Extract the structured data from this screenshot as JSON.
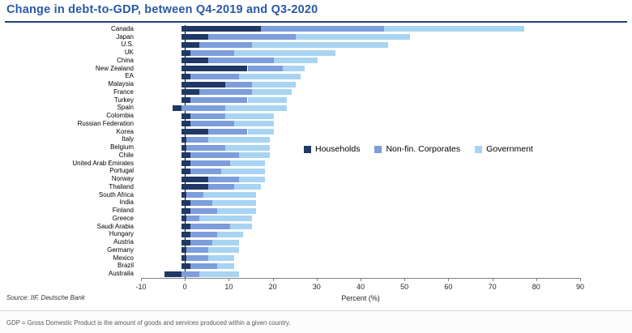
{
  "title": "Change in debt-to-GDP, between Q4-2019 and Q3-2020",
  "source": "Source: IIF, Deutsche Bank",
  "footnote": "GDP = Gross Domestic Product is the amount of goods and services produced within a given country.",
  "colors": {
    "title_blue": "#2A58A6",
    "households": "#203864",
    "non_fin_corporates": "#7D9DDB",
    "government": "#A8D4F2",
    "axis": "#808080"
  },
  "chart_data": {
    "type": "bar",
    "orientation": "horizontal",
    "stacked": true,
    "title": "Change in debt-to-GDP, between Q4-2019 and Q3-2020",
    "xlabel": "Percent (%)",
    "ylabel": "",
    "xlim": [
      -10,
      90
    ],
    "xticks": [
      -10,
      0,
      10,
      20,
      30,
      40,
      50,
      60,
      70,
      80,
      90
    ],
    "grid": false,
    "legend_position": "inside-middle-right",
    "categories": [
      "Canada",
      "Japan",
      "U.S.",
      "UK",
      "China",
      "New Zealand",
      "EA",
      "Malaysia",
      "France",
      "Turkey",
      "Spain",
      "Colombia",
      "Russian Federation",
      "Korea",
      "Italy",
      "Belgium",
      "Chile",
      "United Arab Emirates",
      "Portugal",
      "Norway",
      "Thailand",
      "South Africa",
      "India",
      "Finland",
      "Greece",
      "Saudi Arabia",
      "Hungary",
      "Austria",
      "Germany",
      "Mexico",
      "Brazil",
      "Australia"
    ],
    "series": [
      {
        "name": "Households",
        "color": "#203864",
        "values": [
          18,
          6,
          4,
          2,
          6,
          15,
          2,
          10,
          4,
          2,
          -2,
          2,
          2,
          6,
          1,
          1,
          2,
          2,
          2,
          6,
          6,
          1,
          2,
          2,
          1,
          2,
          2,
          2,
          1,
          1,
          2,
          -4
        ]
      },
      {
        "name": "Non-fin. Corporates",
        "color": "#7D9DDB",
        "values": [
          28,
          20,
          12,
          10,
          15,
          8,
          11,
          6,
          12,
          13,
          10,
          8,
          10,
          9,
          5,
          9,
          11,
          9,
          7,
          7,
          6,
          4,
          5,
          6,
          3,
          9,
          6,
          5,
          5,
          5,
          6,
          4
        ]
      },
      {
        "name": "Government",
        "color": "#A8D4F2",
        "values": [
          32,
          26,
          31,
          23,
          10,
          5,
          14,
          10,
          9,
          9,
          14,
          11,
          9,
          6,
          14,
          10,
          7,
          8,
          10,
          6,
          6,
          12,
          10,
          9,
          12,
          5,
          6,
          6,
          7,
          6,
          4,
          9
        ]
      }
    ]
  }
}
